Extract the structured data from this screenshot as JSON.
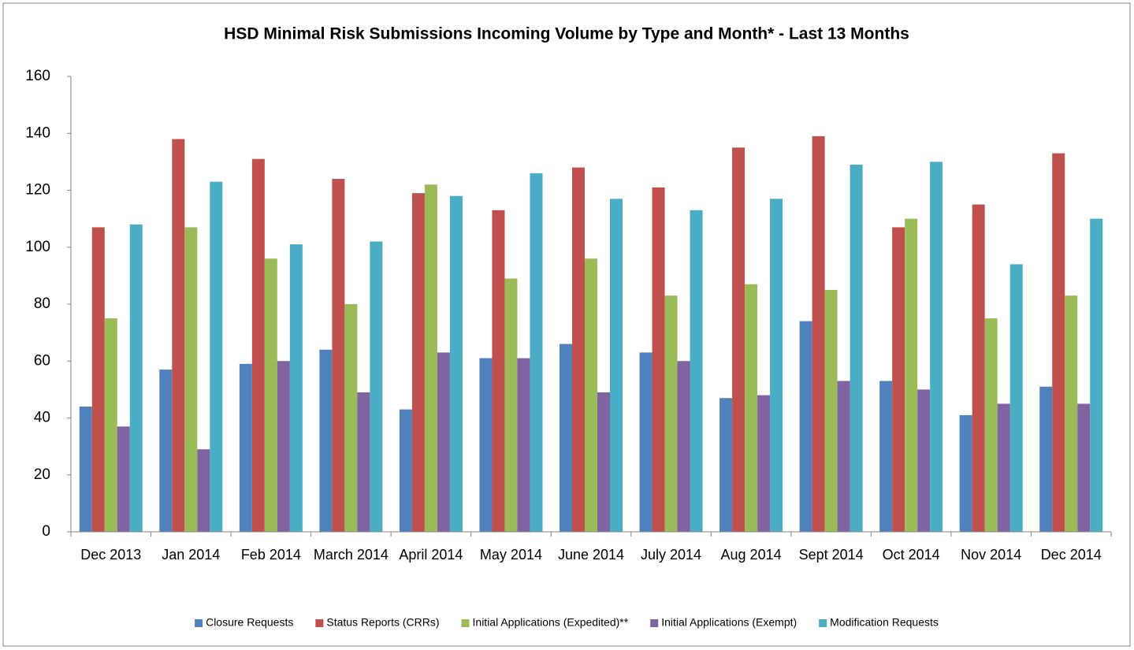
{
  "chart_data": {
    "type": "bar",
    "title": "HSD Minimal Risk Submissions Incoming Volume by Type and Month* - Last 13 Months",
    "categories": [
      "Dec 2013",
      "Jan 2014",
      "Feb 2014",
      "March 2014",
      "April 2014",
      "May 2014",
      "June 2014",
      "July 2014",
      "Aug 2014",
      "Sept 2014",
      "Oct 2014",
      "Nov 2014",
      "Dec 2014"
    ],
    "series": [
      {
        "name": "Closure Requests",
        "color": "#4f81bd",
        "values": [
          44,
          57,
          59,
          64,
          43,
          61,
          66,
          63,
          47,
          74,
          53,
          41,
          51
        ]
      },
      {
        "name": "Status Reports (CRRs)",
        "color": "#c0504d",
        "values": [
          107,
          138,
          131,
          124,
          119,
          113,
          128,
          121,
          135,
          139,
          107,
          115,
          133
        ]
      },
      {
        "name": "Initial Applications (Expedited)**",
        "color": "#9bbb59",
        "values": [
          75,
          107,
          96,
          80,
          122,
          89,
          96,
          83,
          87,
          85,
          110,
          75,
          83
        ]
      },
      {
        "name": "Initial Applications (Exempt)",
        "color": "#8064a2",
        "values": [
          37,
          29,
          60,
          49,
          63,
          61,
          49,
          60,
          48,
          53,
          50,
          45,
          45
        ]
      },
      {
        "name": "Modification Requests",
        "color": "#4bacc6",
        "values": [
          108,
          123,
          101,
          102,
          118,
          126,
          117,
          113,
          117,
          129,
          130,
          94,
          110
        ]
      }
    ],
    "ylim": [
      0,
      160
    ],
    "yticks": [
      0,
      20,
      40,
      60,
      80,
      100,
      120,
      140,
      160
    ],
    "grid": false,
    "legend": "bottom"
  }
}
